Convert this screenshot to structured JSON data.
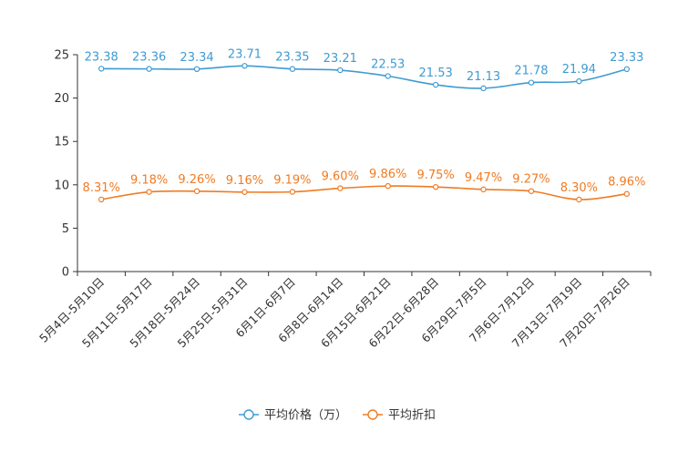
{
  "chart_data": {
    "type": "line",
    "title": "",
    "xlabel": "",
    "ylabel": "",
    "ylim": [
      0,
      25
    ],
    "yticks": [
      0,
      5,
      10,
      15,
      20,
      25
    ],
    "grid": false,
    "legend_position": "bottom-center",
    "categories": [
      "5月4日-5月10日",
      "5月11日-5月17日",
      "5月18日-5月24日",
      "5月25日-5月31日",
      "6月1日-6月7日",
      "6月8日-6月14日",
      "6月15日-6月21日",
      "6月22日-6月28日",
      "6月29日-7月5日",
      "7月6日-7月12日",
      "7月13日-7月19日",
      "7月20日-7月26日"
    ],
    "series": [
      {
        "name": "平均价格（万）",
        "color": "#3e9bd1",
        "values": [
          23.38,
          23.36,
          23.34,
          23.71,
          23.35,
          23.21,
          22.53,
          21.53,
          21.13,
          21.78,
          21.94,
          23.33
        ],
        "labels": [
          "23.38",
          "23.36",
          "23.34",
          "23.71",
          "23.35",
          "23.21",
          "22.53",
          "21.53",
          "21.13",
          "21.78",
          "21.94",
          "23.33"
        ]
      },
      {
        "name": "平均折扣",
        "color": "#f07b22",
        "values": [
          8.31,
          9.18,
          9.26,
          9.16,
          9.19,
          9.6,
          9.86,
          9.75,
          9.47,
          9.27,
          8.3,
          8.96
        ],
        "labels": [
          "8.31%",
          "9.18%",
          "9.26%",
          "9.16%",
          "9.19%",
          "9.60%",
          "9.86%",
          "9.75%",
          "9.47%",
          "9.27%",
          "8.30%",
          "8.96%"
        ]
      }
    ]
  }
}
